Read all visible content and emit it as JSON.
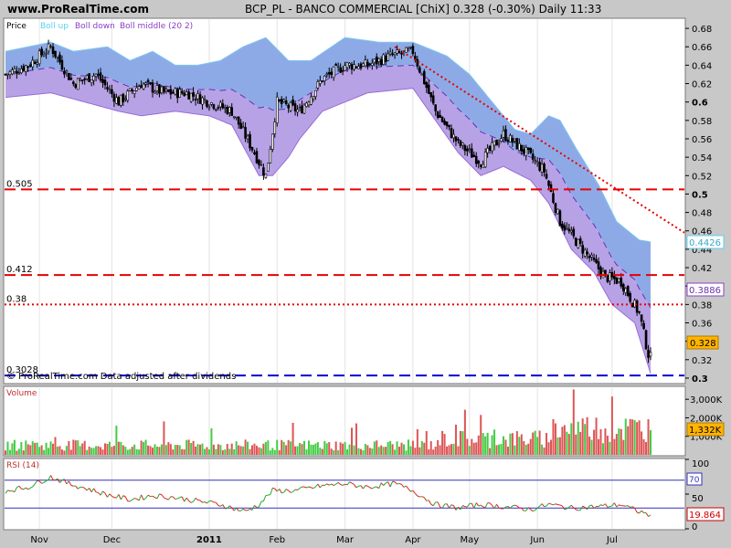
{
  "header": {
    "site": "www.ProRealTime.com",
    "title": "BCP_PL - BANCO COMMERCIAL [ChiX]   0.328 (-0.30%)   Daily  11:33"
  },
  "price_panel": {
    "label": "Price",
    "legend": [
      {
        "text": "Boll up",
        "color": "#5ad2f0"
      },
      {
        "text": "Boll down",
        "color": "#8a3fc8"
      },
      {
        "text": "Boll middle (20 2)",
        "color": "#8a3fc8"
      }
    ],
    "footer": "© ProRealTime.com  Data adjusted after dividends",
    "level_labels": [
      "0.505",
      "0.412",
      "0.38",
      "0.3028"
    ],
    "badges": [
      "0.4426",
      "0.3886",
      "0.328"
    ]
  },
  "volume_panel": {
    "label": "Volume",
    "badge": "1,332K"
  },
  "rsi_panel": {
    "label": "RSI (14)",
    "badges": [
      "70",
      "19.864"
    ]
  },
  "chart_data": [
    {
      "type": "candlestick",
      "panel": "price",
      "ylim": [
        0.295,
        0.69
      ],
      "yticks": [
        0.3,
        0.32,
        0.34,
        0.36,
        0.38,
        0.4,
        0.42,
        0.44,
        0.46,
        0.48,
        0.5,
        0.52,
        0.54,
        0.56,
        0.58,
        0.6,
        0.62,
        0.64,
        0.66,
        0.68
      ],
      "ytick_labels": [
        "0.3",
        "0.32",
        "0.34",
        "0.36",
        "0.38",
        "0.4",
        "0.42",
        "0.44",
        "0.46",
        "0.48",
        "0.5",
        "0.52",
        "0.54",
        "0.56",
        "0.58",
        "0.6",
        "0.62",
        "0.64",
        "0.66",
        "0.68"
      ],
      "x_months": [
        "Nov",
        "Dec",
        "2011",
        "Feb",
        "Mar",
        "Apr",
        "May",
        "Jun",
        "Jul"
      ],
      "close_anchors": [
        [
          0,
          0.63
        ],
        [
          10,
          0.64
        ],
        [
          20,
          0.66
        ],
        [
          30,
          0.62
        ],
        [
          40,
          0.63
        ],
        [
          50,
          0.6
        ],
        [
          60,
          0.62
        ],
        [
          70,
          0.61
        ],
        [
          80,
          0.61
        ],
        [
          90,
          0.6
        ],
        [
          100,
          0.59
        ],
        [
          110,
          0.545
        ],
        [
          115,
          0.52
        ],
        [
          120,
          0.6
        ],
        [
          130,
          0.59
        ],
        [
          140,
          0.625
        ],
        [
          150,
          0.64
        ],
        [
          160,
          0.64
        ],
        [
          170,
          0.65
        ],
        [
          180,
          0.655
        ],
        [
          190,
          0.59
        ],
        [
          200,
          0.555
        ],
        [
          210,
          0.535
        ],
        [
          220,
          0.565
        ],
        [
          230,
          0.545
        ],
        [
          238,
          0.525
        ],
        [
          245,
          0.47
        ],
        [
          255,
          0.44
        ],
        [
          265,
          0.41
        ],
        [
          272,
          0.405
        ],
        [
          280,
          0.37
        ],
        [
          285,
          0.315
        ]
      ],
      "boll_up_anchors": [
        [
          0,
          0.655
        ],
        [
          20,
          0.665
        ],
        [
          30,
          0.655
        ],
        [
          45,
          0.66
        ],
        [
          55,
          0.645
        ],
        [
          65,
          0.655
        ],
        [
          75,
          0.64
        ],
        [
          85,
          0.64
        ],
        [
          95,
          0.645
        ],
        [
          105,
          0.66
        ],
        [
          115,
          0.67
        ],
        [
          125,
          0.645
        ],
        [
          135,
          0.645
        ],
        [
          150,
          0.67
        ],
        [
          165,
          0.665
        ],
        [
          180,
          0.665
        ],
        [
          195,
          0.65
        ],
        [
          205,
          0.63
        ],
        [
          215,
          0.6
        ],
        [
          225,
          0.57
        ],
        [
          232,
          0.565
        ],
        [
          240,
          0.585
        ],
        [
          245,
          0.58
        ],
        [
          252,
          0.55
        ],
        [
          262,
          0.51
        ],
        [
          270,
          0.47
        ],
        [
          280,
          0.45
        ],
        [
          285,
          0.448
        ]
      ],
      "boll_down_anchors": [
        [
          0,
          0.605
        ],
        [
          20,
          0.61
        ],
        [
          35,
          0.6
        ],
        [
          50,
          0.59
        ],
        [
          60,
          0.585
        ],
        [
          75,
          0.59
        ],
        [
          90,
          0.585
        ],
        [
          100,
          0.575
        ],
        [
          112,
          0.52
        ],
        [
          118,
          0.52
        ],
        [
          125,
          0.54
        ],
        [
          130,
          0.56
        ],
        [
          140,
          0.59
        ],
        [
          160,
          0.61
        ],
        [
          180,
          0.615
        ],
        [
          190,
          0.58
        ],
        [
          200,
          0.545
        ],
        [
          210,
          0.52
        ],
        [
          220,
          0.53
        ],
        [
          232,
          0.515
        ],
        [
          240,
          0.49
        ],
        [
          250,
          0.44
        ],
        [
          260,
          0.415
        ],
        [
          268,
          0.38
        ],
        [
          278,
          0.36
        ],
        [
          285,
          0.305
        ]
      ],
      "levels": [
        {
          "label": "0.505",
          "y": 0.505,
          "color": "#e60000",
          "style": "dashed"
        },
        {
          "label": "0.412",
          "y": 0.412,
          "color": "#e60000",
          "style": "dashed"
        },
        {
          "label": "0.38",
          "y": 0.38,
          "color": "#e60000",
          "style": "dotted"
        },
        {
          "label": "0.3028",
          "y": 0.3028,
          "color": "#0000cc",
          "style": "dashed"
        }
      ],
      "trendline": {
        "from": [
          172,
          0.66
        ],
        "to": [
          300,
          0.458
        ],
        "color": "#e60000",
        "style": "dotted"
      },
      "last_close": 0.328
    },
    {
      "type": "bar",
      "panel": "volume",
      "ylim": [
        0,
        3600
      ],
      "yticks": [
        1000,
        2000,
        3000
      ],
      "ytick_labels": [
        "1,000K",
        "2,000K",
        "3,000K"
      ],
      "last_value": 1332
    },
    {
      "type": "line",
      "panel": "rsi",
      "ylim": [
        0,
        100
      ],
      "yticks": [
        0,
        50,
        100
      ],
      "ytick_labels": [
        "0",
        "50",
        "100"
      ],
      "levels": [
        70,
        30
      ],
      "rsi_anchors": [
        [
          0,
          55
        ],
        [
          10,
          60
        ],
        [
          20,
          75
        ],
        [
          28,
          65
        ],
        [
          36,
          58
        ],
        [
          44,
          50
        ],
        [
          55,
          42
        ],
        [
          65,
          48
        ],
        [
          75,
          45
        ],
        [
          85,
          40
        ],
        [
          95,
          35
        ],
        [
          100,
          30
        ],
        [
          106,
          25
        ],
        [
          112,
          35
        ],
        [
          118,
          55
        ],
        [
          128,
          55
        ],
        [
          140,
          62
        ],
        [
          150,
          65
        ],
        [
          160,
          60
        ],
        [
          172,
          65
        ],
        [
          180,
          55
        ],
        [
          190,
          35
        ],
        [
          200,
          30
        ],
        [
          210,
          35
        ],
        [
          220,
          32
        ],
        [
          232,
          28
        ],
        [
          240,
          35
        ],
        [
          250,
          30
        ],
        [
          262,
          32
        ],
        [
          272,
          35
        ],
        [
          278,
          27
        ],
        [
          285,
          19.864
        ]
      ],
      "last_value": 19.864
    }
  ]
}
